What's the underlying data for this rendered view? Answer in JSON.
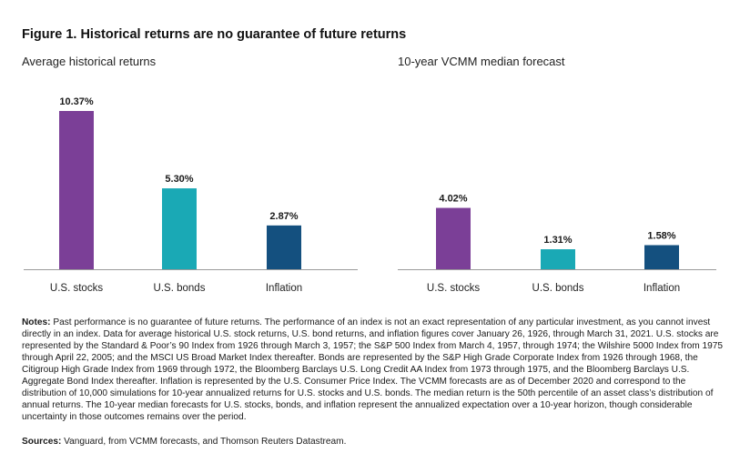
{
  "figure_title": "Figure 1. Historical returns are no guarantee of future returns",
  "notes_label": "Notes:",
  "notes_text": "Past performance is no guarantee of future returns. The performance of an index is not an exact representation of any particular investment, as you cannot invest directly in an index. Data for average historical U.S. stock returns, U.S. bond returns, and inflation figures cover January 26, 1926, through March 31, 2021. U.S. stocks are represented by the Standard & Poor’s 90 Index from 1926 through March 3, 1957; the S&P 500 Index from March 4, 1957, through 1974; the Wilshire 5000 Index from 1975 through April 22, 2005; and the MSCI US Broad Market Index thereafter. Bonds are represented by the S&P High Grade Corporate Index from 1926 through 1968, the Citigroup High Grade Index from 1969 through 1972, the Bloomberg Barclays U.S. Long Credit AA Index from 1973 through 1975, and the Bloomberg Barclays U.S. Aggregate Bond Index thereafter. Inflation is represented by the U.S. Consumer Price Index. The VCMM forecasts are as of December 2020 and correspond to the distribution of 10,000 simulations for 10-year annualized returns for U.S. stocks and U.S. bonds. The median return is the 50th percentile of an asset class’s distribution of annual returns. The 10-year median forecasts for U.S. stocks, bonds, and inflation represent the annualized expectation over a 10-year horizon, though considerable uncertainty in those outcomes remains over the period.",
  "sources_label": "Sources:",
  "sources_text": "Vanguard, from VCMM forecasts, and Thomson Reuters Datastream.",
  "colors": {
    "stocks": "#7b3f97",
    "bonds": "#1aa9b5",
    "inflation": "#14507f",
    "axis": "#9a9a9a"
  },
  "chart_data": [
    {
      "type": "bar",
      "title": "Average historical returns",
      "categories": [
        "U.S. stocks",
        "U.S. bonds",
        "Inflation"
      ],
      "values": [
        10.37,
        5.3,
        2.87
      ],
      "labels": [
        "10.37%",
        "5.30%",
        "2.87%"
      ],
      "unit": "%",
      "ylim": [
        0,
        10.37
      ],
      "grid": false
    },
    {
      "type": "bar",
      "title": "10-year VCMM median forecast",
      "categories": [
        "U.S. stocks",
        "U.S. bonds",
        "Inflation"
      ],
      "values": [
        4.02,
        1.31,
        1.58
      ],
      "labels": [
        "4.02%",
        "1.31%",
        "1.58%"
      ],
      "unit": "%",
      "ylim": [
        0,
        10.37
      ],
      "grid": false
    }
  ]
}
